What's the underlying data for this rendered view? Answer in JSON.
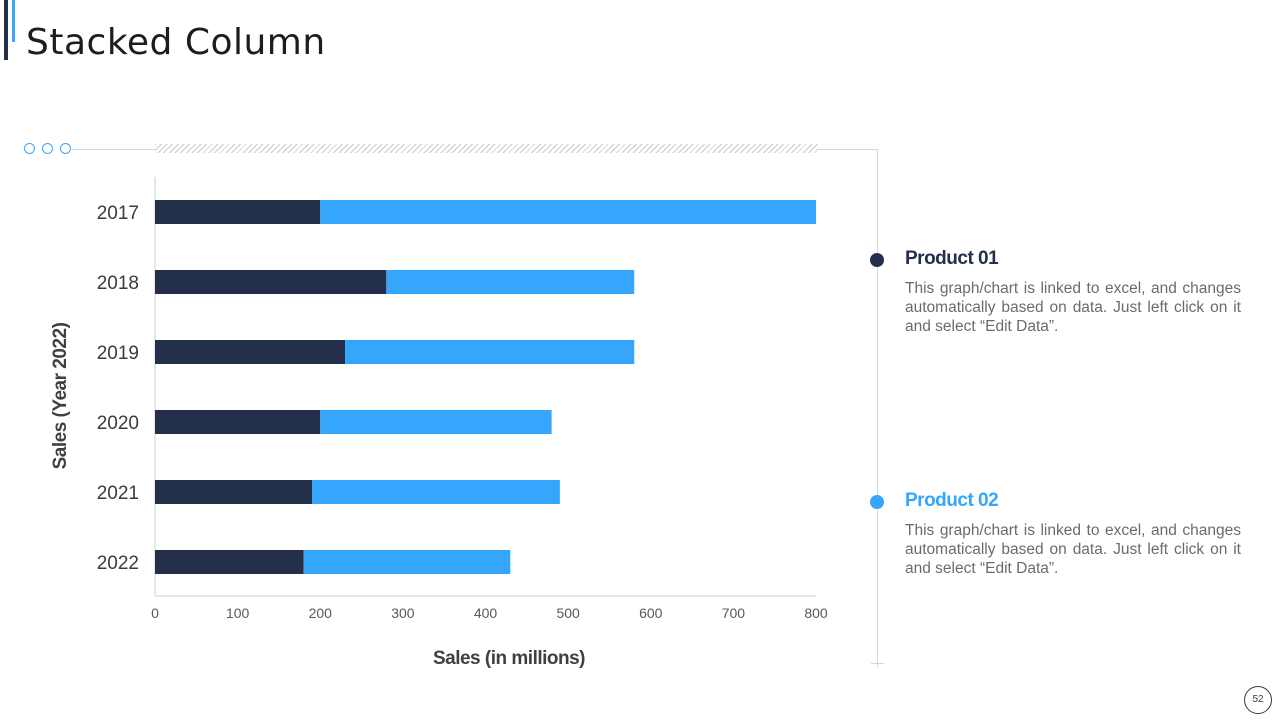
{
  "slide": {
    "title": "Stacked Column",
    "page_number": "52"
  },
  "colors": {
    "product1": "#243049",
    "product2": "#35a6fb",
    "accent": "#3aa7f5"
  },
  "legend": [
    {
      "name": "Product 01",
      "color": "#243049",
      "description": "This graph/chart is linked to excel, and changes automatically based on data. Just left click on it and select “Edit Data”."
    },
    {
      "name": "Product 02",
      "color": "#35a6fb",
      "description": "This graph/chart is linked to excel, and changes automatically based on data. Just left click on it and select “Edit Data”."
    }
  ],
  "chart_data": {
    "type": "bar",
    "orientation": "horizontal",
    "stacked": true,
    "title": "",
    "xlabel": "Sales (in millions)",
    "ylabel": "Sales (Year 2022)",
    "xlim": [
      0,
      800
    ],
    "xticks": [
      0,
      100,
      200,
      300,
      400,
      500,
      600,
      700,
      800
    ],
    "grid": false,
    "categories": [
      "2017",
      "2018",
      "2019",
      "2020",
      "2021",
      "2022"
    ],
    "series": [
      {
        "name": "Product 01",
        "color": "#243049",
        "values": [
          200,
          280,
          230,
          200,
          190,
          180
        ]
      },
      {
        "name": "Product 02",
        "color": "#35a6fb",
        "values": [
          600,
          300,
          350,
          280,
          300,
          250
        ]
      }
    ]
  }
}
